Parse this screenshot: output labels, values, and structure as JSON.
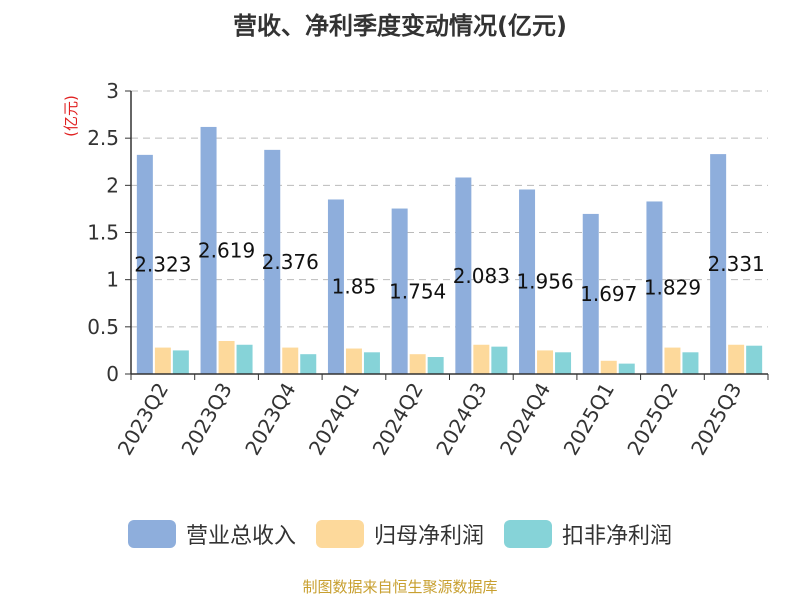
{
  "chart_data": {
    "type": "bar",
    "title": "营收、净利季度变动情况(亿元)",
    "unit_label": "(亿元)",
    "categories": [
      "2023Q2",
      "2023Q3",
      "2023Q4",
      "2024Q1",
      "2024Q2",
      "2024Q3",
      "2024Q4",
      "2025Q1",
      "2025Q2",
      "2025Q3"
    ],
    "series": [
      {
        "name": "营业总收入",
        "color": "#8eaedc",
        "values": [
          2.323,
          2.619,
          2.376,
          1.85,
          1.754,
          2.083,
          1.956,
          1.697,
          1.829,
          2.331
        ]
      },
      {
        "name": "归母净利润",
        "color": "#fdd99b",
        "values": [
          0.28,
          0.35,
          0.28,
          0.27,
          0.21,
          0.31,
          0.25,
          0.14,
          0.28,
          0.31
        ]
      },
      {
        "name": "扣非净利润",
        "color": "#86d3d8",
        "values": [
          0.25,
          0.31,
          0.21,
          0.23,
          0.18,
          0.29,
          0.23,
          0.11,
          0.23,
          0.3
        ]
      }
    ],
    "data_labels": [
      "2.323",
      "2.619",
      "2.376",
      "1.85",
      "1.754",
      "2.083",
      "1.956",
      "1.697",
      "1.829",
      "2.331"
    ],
    "ylim": [
      0,
      3
    ],
    "yticks": [
      0,
      0.5,
      1,
      1.5,
      2,
      2.5,
      3
    ],
    "ytick_labels": [
      "0",
      "0.5",
      "1",
      "1.5",
      "2",
      "2.5",
      "3"
    ],
    "grid": true,
    "legend_position": "bottom",
    "unit_color": "#e02020"
  },
  "source_text": "制图数据来自恒生聚源数据库"
}
